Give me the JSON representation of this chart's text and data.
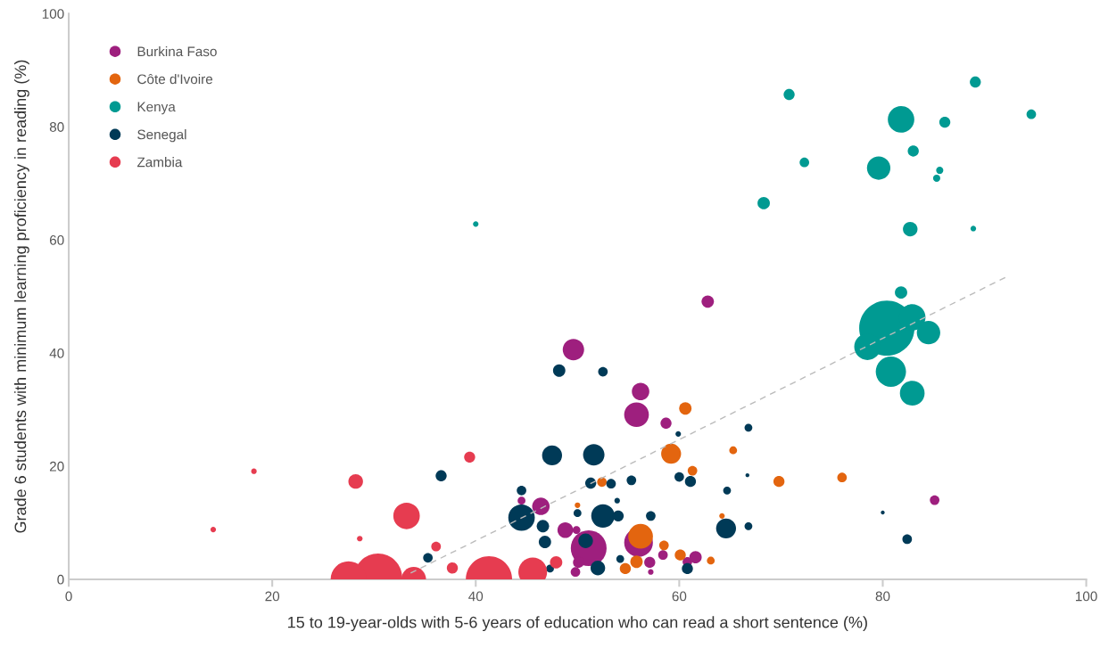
{
  "chart_data": {
    "type": "bubble",
    "xlabel": "15 to 19-year-olds with 5-6 years of education who can read a short sentence (%)",
    "ylabel": "Grade 6 students with minimum learning proficiency in reading (%)",
    "xlim": [
      0,
      100
    ],
    "xticks": [
      0,
      20,
      40,
      60,
      80,
      100
    ],
    "ylim": [
      0,
      100
    ],
    "yticks": [
      0,
      20,
      40,
      60,
      80,
      100
    ],
    "legend": "top left",
    "marker": "circle",
    "series": [
      {
        "name": "Burkina Faso",
        "color": "#9e1f7e",
        "x": [
          49.6,
          56.2,
          55.8,
          58.7,
          62.8,
          85.1,
          46.4,
          44.5,
          48.8,
          49.9,
          51.1,
          56.0,
          50.1,
          49.8,
          57.1,
          57.2,
          58.4,
          60.8,
          61.6
        ],
        "values": [
          40.6,
          33.2,
          29.1,
          27.6,
          49.1,
          14.0,
          12.9,
          13.9,
          8.7,
          8.7,
          5.5,
          6.5,
          3.0,
          1.3,
          3.0,
          1.3,
          4.3,
          3.1,
          3.9
        ],
        "sizes": [
          0.15,
          0.1,
          0.2,
          0.04,
          0.05,
          0.03,
          0.1,
          0.02,
          0.08,
          0.02,
          0.42,
          0.27,
          0.04,
          0.03,
          0.04,
          0.01,
          0.03,
          0.03,
          0.05
        ]
      },
      {
        "name": "Côte d'Ivoire",
        "color": "#e3650f",
        "x": [
          60.6,
          59.2,
          61.3,
          65.3,
          52.4,
          50.0,
          56.2,
          58.5,
          60.1,
          63.1,
          55.8,
          54.7,
          64.2,
          69.8,
          76.0
        ],
        "values": [
          30.2,
          22.2,
          19.2,
          22.8,
          17.2,
          13.1,
          7.6,
          6.0,
          4.3,
          3.3,
          3.1,
          1.9,
          11.2,
          17.3,
          18.0
        ],
        "sizes": [
          0.05,
          0.13,
          0.03,
          0.02,
          0.03,
          0.01,
          0.2,
          0.03,
          0.04,
          0.02,
          0.05,
          0.04,
          0.01,
          0.04,
          0.03
        ]
      },
      {
        "name": "Kenya",
        "color": "#009a92",
        "x": [
          70.8,
          89.1,
          81.8,
          86.1,
          72.3,
          79.6,
          83.0,
          85.6,
          85.3,
          68.3,
          82.7,
          88.9,
          40.0,
          81.8,
          80.4,
          82.9,
          84.5,
          78.5,
          80.8,
          82.9,
          94.6
        ],
        "values": [
          85.7,
          87.9,
          81.3,
          80.8,
          73.7,
          72.7,
          75.7,
          72.3,
          70.9,
          66.5,
          61.9,
          62.0,
          62.8,
          50.7,
          44.4,
          46.3,
          43.6,
          41.1,
          36.7,
          32.9,
          82.2
        ],
        "sizes": [
          0.04,
          0.04,
          0.23,
          0.04,
          0.03,
          0.18,
          0.04,
          0.017,
          0.017,
          0.05,
          0.07,
          0.01,
          0.01,
          0.05,
          1,
          0.23,
          0.18,
          0.23,
          0.3,
          0.2,
          0.03
        ]
      },
      {
        "name": "Senegal",
        "color": "#003a57",
        "x": [
          48.2,
          52.5,
          59.9,
          66.8,
          47.5,
          51.6,
          36.6,
          51.3,
          53.3,
          55.3,
          60.0,
          61.1,
          66.7,
          44.5,
          50.0,
          53.9,
          44.5,
          46.6,
          52.5,
          54.0,
          57.2,
          64.7,
          66.8,
          64.6,
          46.8,
          50.8,
          35.3,
          54.2,
          52.0,
          47.3,
          60.8,
          80.0,
          82.4
        ],
        "values": [
          36.9,
          36.7,
          25.7,
          26.8,
          21.9,
          22.0,
          18.3,
          17.0,
          16.9,
          17.5,
          18.1,
          17.3,
          18.4,
          15.7,
          11.7,
          13.9,
          10.9,
          9.4,
          11.2,
          11.2,
          11.2,
          15.7,
          9.4,
          9.0,
          6.6,
          6.8,
          3.8,
          3.6,
          2.0,
          1.9,
          1.9,
          11.8,
          7.1
        ],
        "sizes": [
          0.05,
          0.03,
          0.01,
          0.02,
          0.13,
          0.15,
          0.04,
          0.04,
          0.03,
          0.03,
          0.03,
          0.04,
          0.005,
          0.03,
          0.02,
          0.01,
          0.23,
          0.05,
          0.18,
          0.04,
          0.03,
          0.02,
          0.02,
          0.13,
          0.05,
          0.07,
          0.03,
          0.02,
          0.07,
          0.02,
          0.04,
          0.005,
          0.03
        ]
      },
      {
        "name": "Zambia",
        "color": "#e63c50",
        "x": [
          18.2,
          14.2,
          28.2,
          33.2,
          28.6,
          36.1,
          39.4,
          37.7,
          30.4,
          33.9,
          41.3,
          45.6,
          27.5,
          47.9
        ],
        "values": [
          19.1,
          8.8,
          17.3,
          11.2,
          7.2,
          5.8,
          21.6,
          2.0,
          0.3,
          0.0,
          0.0,
          1.3,
          0.0,
          3.0
        ],
        "sizes": [
          0.01,
          0.01,
          0.07,
          0.23,
          0.01,
          0.03,
          0.04,
          0.04,
          0.76,
          0.2,
          0.7,
          0.27,
          0.42,
          0.05
        ]
      },
      {
        "type": "line",
        "color": "#bbbbbb",
        "line_style": "dashed",
        "marker": "none",
        "x": [
          33.6,
          92.2
        ],
        "values": [
          1.1,
          53.5
        ]
      }
    ]
  }
}
